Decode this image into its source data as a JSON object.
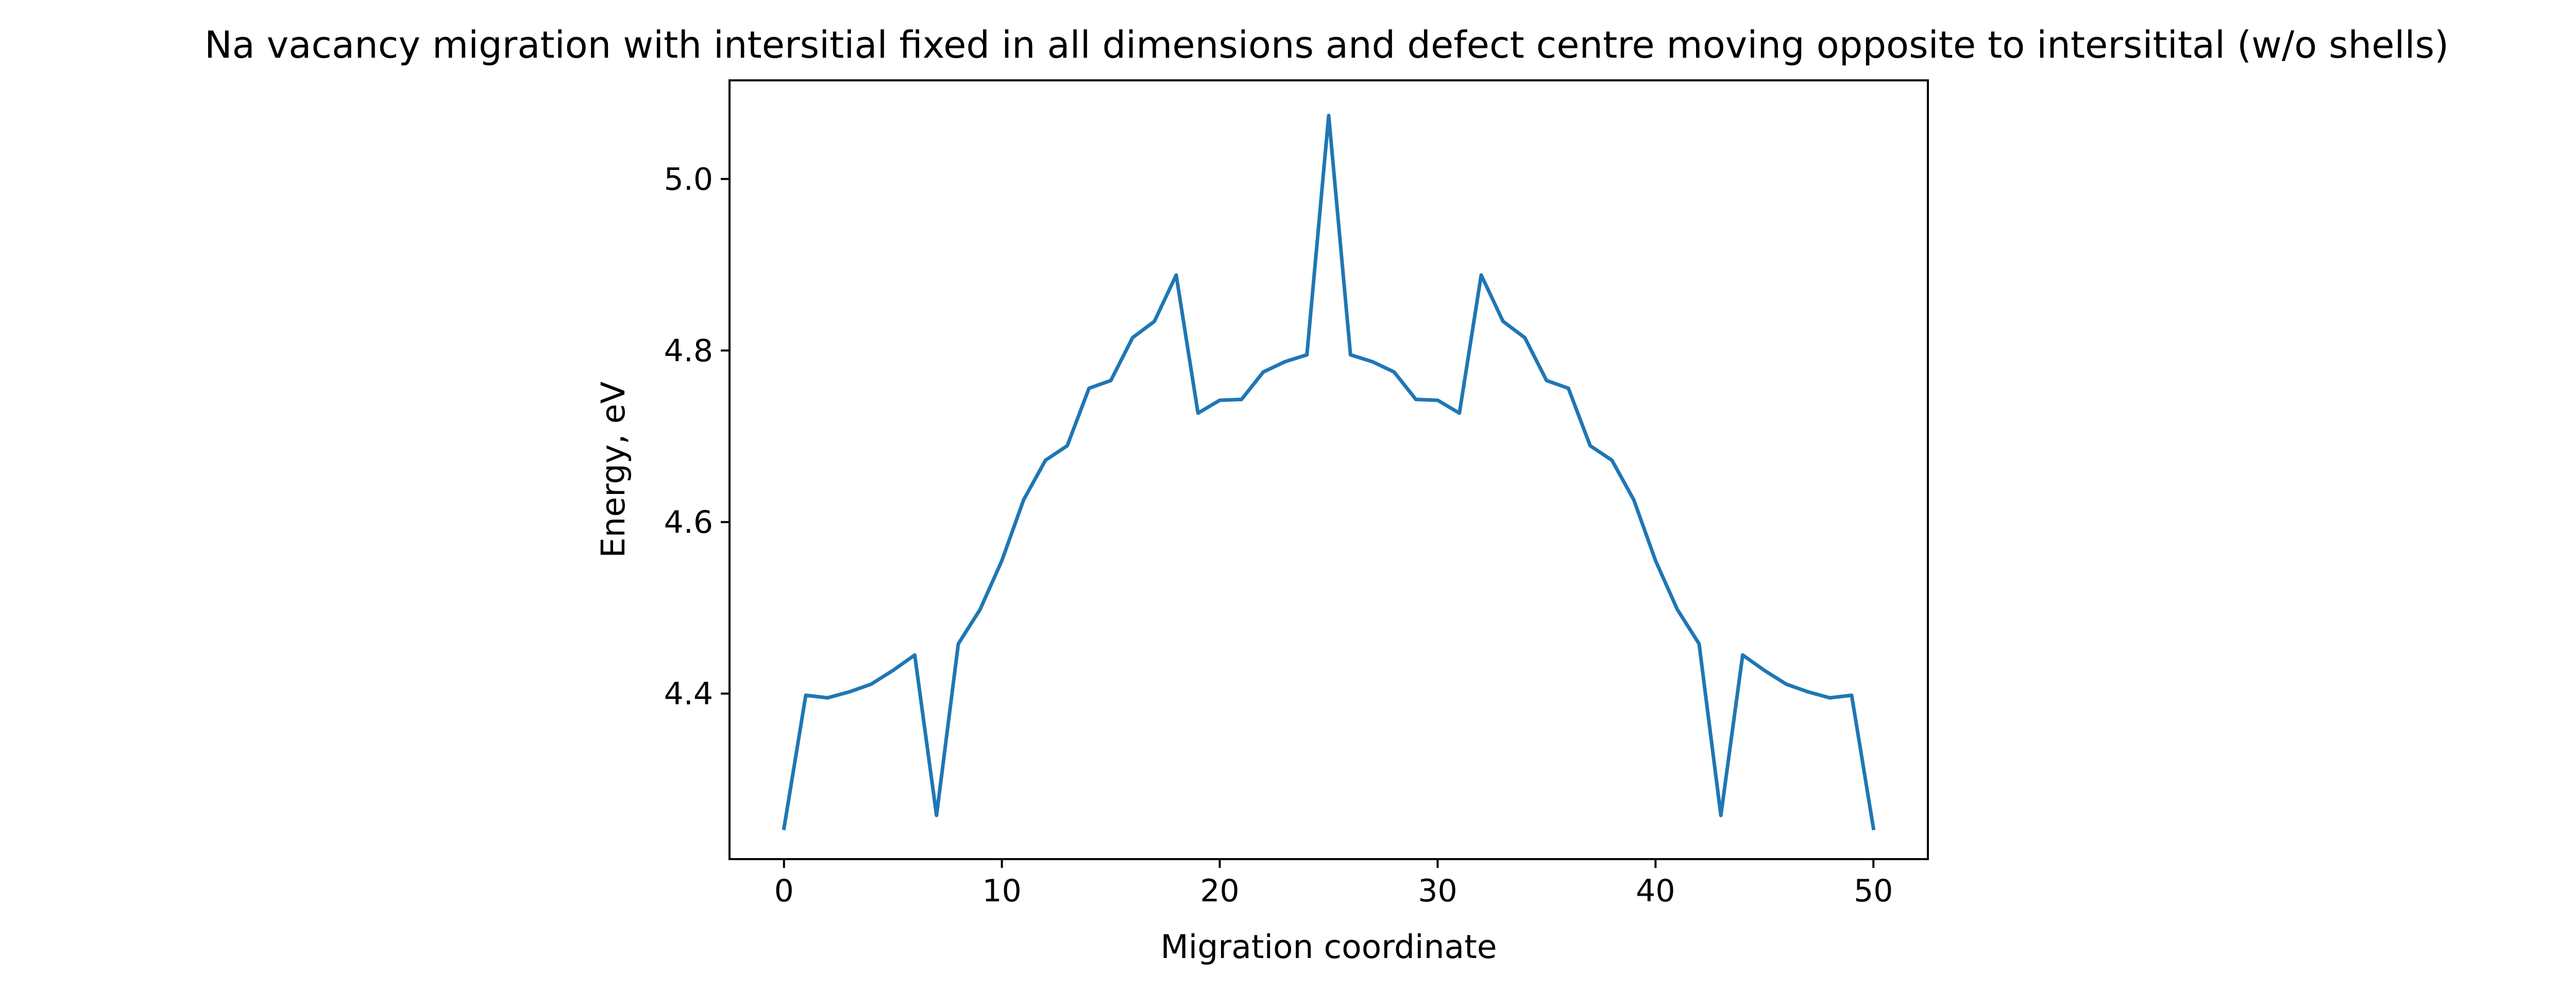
{
  "chart_data": {
    "type": "line",
    "title": "Na vacancy migration with intersitial fixed in all dimensions and defect centre moving opposite to intersitital (w/o shells)",
    "xlabel": "Migration coordinate",
    "ylabel": "Energy, eV",
    "xlim": [
      -2.5,
      52.5
    ],
    "ylim": [
      4.207,
      5.115
    ],
    "xticks": [
      0,
      10,
      20,
      30,
      40,
      50
    ],
    "xtick_labels": [
      "0",
      "10",
      "20",
      "30",
      "40",
      "50"
    ],
    "yticks": [
      4.4,
      4.6,
      4.8,
      5.0
    ],
    "ytick_labels": [
      "4.4",
      "4.6",
      "4.8",
      "5.0"
    ],
    "grid": false,
    "legend": "none",
    "series": [
      {
        "color": "#1f77b4",
        "x": [
          0,
          1,
          2,
          3,
          4,
          5,
          6,
          7,
          8,
          9,
          10,
          11,
          12,
          13,
          14,
          15,
          16,
          17,
          18,
          19,
          20,
          21,
          22,
          23,
          24,
          25,
          26,
          27,
          28,
          29,
          30,
          31,
          32,
          33,
          34,
          35,
          36,
          37,
          38,
          39,
          40,
          41,
          42,
          43,
          44,
          45,
          46,
          47,
          48,
          49,
          50
        ],
        "y": [
          4.243,
          4.398,
          4.395,
          4.402,
          4.411,
          4.427,
          4.445,
          4.258,
          4.458,
          4.498,
          4.555,
          4.626,
          4.672,
          4.689,
          4.756,
          4.765,
          4.815,
          4.834,
          4.888,
          4.727,
          4.742,
          4.743,
          4.775,
          4.787,
          4.795,
          5.074,
          4.795,
          4.787,
          4.775,
          4.743,
          4.742,
          4.727,
          4.888,
          4.834,
          4.815,
          4.765,
          4.756,
          4.689,
          4.672,
          4.626,
          4.555,
          4.498,
          4.458,
          4.258,
          4.445,
          4.427,
          4.411,
          4.402,
          4.395,
          4.398,
          4.243
        ]
      }
    ]
  }
}
